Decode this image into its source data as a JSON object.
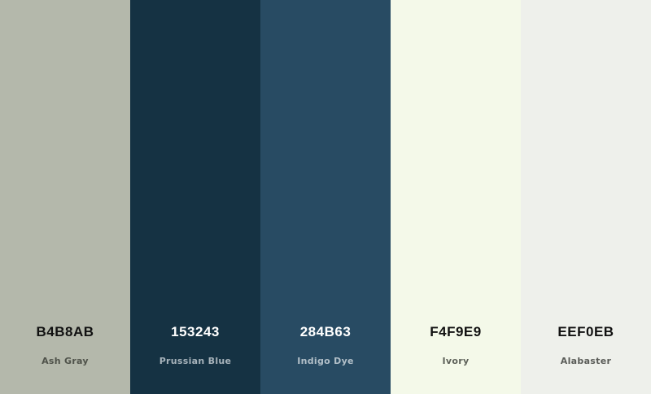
{
  "palette": {
    "colors": [
      {
        "hex": "B4B8AB",
        "name": "Ash Gray",
        "swatch_color": "#B4B8AB",
        "hex_text_color": "#111111",
        "name_text_color": "#4f524a"
      },
      {
        "hex": "153243",
        "name": "Prussian Blue",
        "swatch_color": "#153243",
        "hex_text_color": "#ffffff",
        "name_text_color": "#a7b3bb"
      },
      {
        "hex": "284B63",
        "name": "Indigo Dye",
        "swatch_color": "#284B63",
        "hex_text_color": "#ffffff",
        "name_text_color": "#b3c0c9"
      },
      {
        "hex": "F4F9E9",
        "name": "Ivory",
        "swatch_color": "#F4F9E9",
        "hex_text_color": "#111111",
        "name_text_color": "#5e625a"
      },
      {
        "hex": "EEF0EB",
        "name": "Alabaster",
        "swatch_color": "#EEF0EB",
        "hex_text_color": "#111111",
        "name_text_color": "#5a5c58"
      }
    ]
  }
}
